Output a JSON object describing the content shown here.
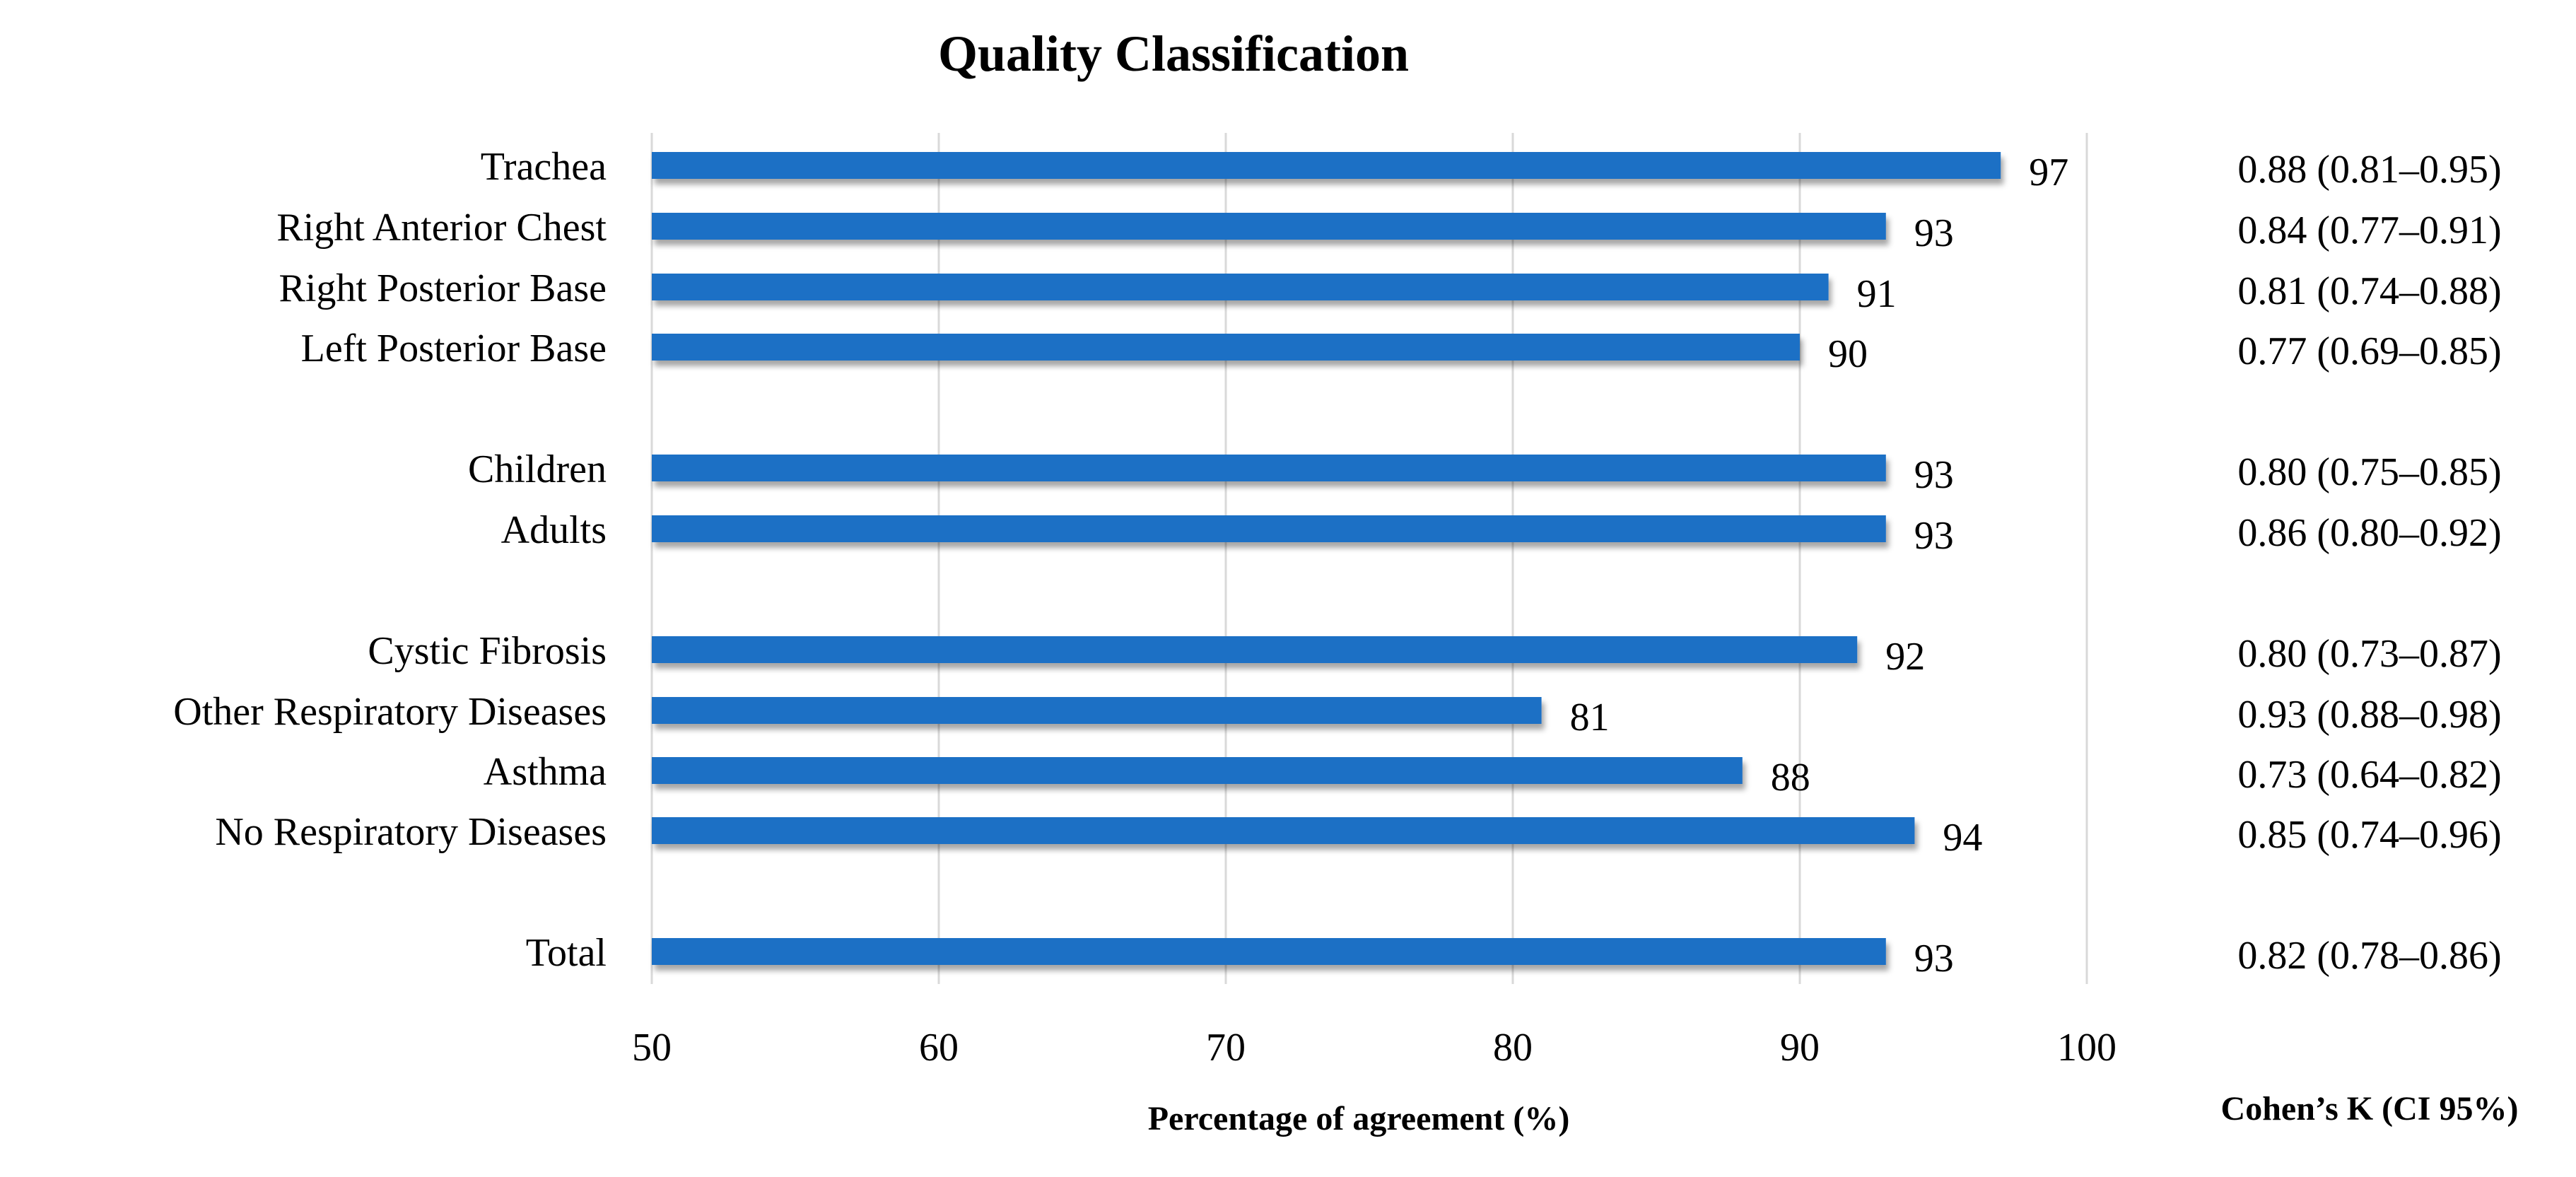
{
  "chart_data": {
    "type": "bar",
    "orientation": "horizontal",
    "title": "Quality Classification",
    "xlabel": "Percentage of agreement (%)",
    "secondary_column_title": "Cohen’s K (CI 95%)",
    "xlim": [
      50,
      100
    ],
    "xticks": [
      "50",
      "60",
      "70",
      "80",
      "90",
      "100"
    ],
    "grid": "vertical gridlines",
    "bar_color": "#1F6FC5",
    "categories": [
      "Trachea",
      "Right Anterior Chest",
      "Right Posterior Base",
      "Left Posterior Base",
      "Children",
      "Adults",
      "Cystic Fibrosis",
      "Other Respiratory Diseases",
      "Asthma",
      "No Respiratory Diseases",
      "Total"
    ],
    "groups": [
      [
        0,
        1,
        2,
        3
      ],
      [
        4,
        5
      ],
      [
        6,
        7,
        8,
        9
      ],
      [
        10
      ]
    ],
    "values": [
      97,
      93,
      91,
      90,
      93,
      93,
      92,
      81,
      88,
      94,
      93
    ],
    "value_labels": [
      "97",
      "93",
      "91",
      "90",
      "93",
      "93",
      "92",
      "81",
      "88",
      "94",
      "93"
    ],
    "cohens_kappa": [
      "0.88 (0.81–0.95)",
      "0.84 (0.77–0.91)",
      "0.81 (0.74–0.88)",
      "0.77 (0.69–0.85)",
      "0.80 (0.75–0.85)",
      "0.86 (0.80–0.92)",
      "0.80 (0.73–0.87)",
      "0.93 (0.88–0.98)",
      "0.73 (0.64–0.82)",
      "0.85 (0.74–0.96)",
      "0.82 (0.78–0.86)"
    ]
  }
}
